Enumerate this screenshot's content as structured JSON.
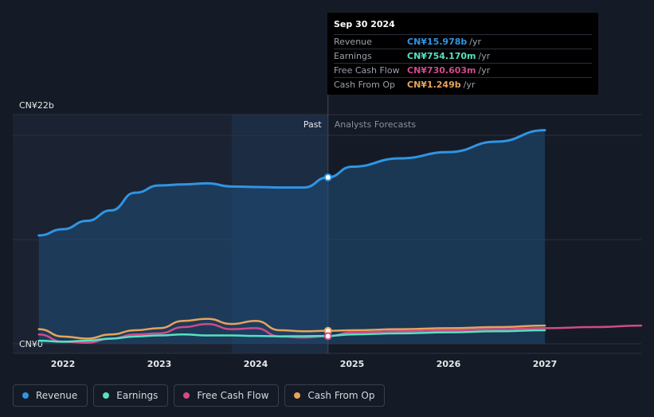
{
  "chart_data": {
    "type": "line",
    "ylim_labels": {
      "top": "CN¥22b",
      "bottom": "CN¥0"
    },
    "ylim": [
      0,
      22
    ],
    "x_ticks": [
      "2022",
      "2023",
      "2024",
      "2025",
      "2026",
      "2027"
    ],
    "past_label": "Past",
    "forecast_label": "Analysts Forecasts",
    "series": [
      {
        "name": "Revenue",
        "color": "#2f95e4",
        "x": [
          2021.75,
          2022.0,
          2022.25,
          2022.5,
          2022.75,
          2023.0,
          2023.25,
          2023.5,
          2023.75,
          2024.0,
          2024.25,
          2024.5,
          2024.75,
          2025.0,
          2025.5,
          2026.0,
          2026.5,
          2027.0
        ],
        "y": [
          10.4,
          11.0,
          11.8,
          12.8,
          14.5,
          15.2,
          15.3,
          15.4,
          15.1,
          15.05,
          15.0,
          15.0,
          15.978,
          17.0,
          17.8,
          18.4,
          19.4,
          20.5
        ]
      },
      {
        "name": "Earnings",
        "color": "#58e1c1",
        "x": [
          2021.75,
          2022.0,
          2022.25,
          2022.5,
          2022.75,
          2023.0,
          2023.25,
          2023.5,
          2023.75,
          2024.0,
          2024.25,
          2024.5,
          2024.75,
          2025.0,
          2025.5,
          2026.0,
          2026.5,
          2027.0
        ],
        "y": [
          0.3,
          0.2,
          0.3,
          0.5,
          0.7,
          0.8,
          0.9,
          0.8,
          0.8,
          0.75,
          0.72,
          0.73,
          0.754,
          0.9,
          1.0,
          1.1,
          1.2,
          1.3
        ]
      },
      {
        "name": "Free Cash Flow",
        "color": "#d14a8c",
        "x": [
          2021.75,
          2022.0,
          2022.25,
          2022.5,
          2022.75,
          2023.0,
          2023.25,
          2023.5,
          2023.75,
          2024.0,
          2024.25,
          2024.5,
          2024.75,
          2025.0,
          2025.5,
          2026.0,
          2026.5,
          2027.0,
          2027.5,
          2028.0
        ],
        "y": [
          0.9,
          0.2,
          0.1,
          0.5,
          0.9,
          1.0,
          1.6,
          1.9,
          1.4,
          1.5,
          0.7,
          0.6,
          0.731,
          1.1,
          1.2,
          1.3,
          1.4,
          1.5,
          1.6,
          1.75
        ]
      },
      {
        "name": "Cash From Op",
        "color": "#e7a45a",
        "x": [
          2021.75,
          2022.0,
          2022.25,
          2022.5,
          2022.75,
          2023.0,
          2023.25,
          2023.5,
          2023.75,
          2024.0,
          2024.25,
          2024.5,
          2024.75,
          2025.0,
          2025.5,
          2026.0,
          2026.5,
          2027.0
        ],
        "y": [
          1.4,
          0.7,
          0.5,
          0.9,
          1.3,
          1.5,
          2.2,
          2.4,
          1.9,
          2.2,
          1.3,
          1.2,
          1.249,
          1.3,
          1.4,
          1.5,
          1.6,
          1.75
        ]
      }
    ]
  },
  "tooltip": {
    "date": "Sep 30 2024",
    "rows": [
      {
        "label": "Revenue",
        "value": "CN¥15.978b",
        "unit": "/yr",
        "color": "#2f95e4"
      },
      {
        "label": "Earnings",
        "value": "CN¥754.170m",
        "unit": "/yr",
        "color": "#58e1c1"
      },
      {
        "label": "Free Cash Flow",
        "value": "CN¥730.603m",
        "unit": "/yr",
        "color": "#d14a8c"
      },
      {
        "label": "Cash From Op",
        "value": "CN¥1.249b",
        "unit": "/yr",
        "color": "#e7a45a"
      }
    ]
  },
  "legend": [
    {
      "label": "Revenue",
      "color": "#2f95e4"
    },
    {
      "label": "Earnings",
      "color": "#58e1c1"
    },
    {
      "label": "Free Cash Flow",
      "color": "#d14a8c"
    },
    {
      "label": "Cash From Op",
      "color": "#e7a45a"
    }
  ]
}
